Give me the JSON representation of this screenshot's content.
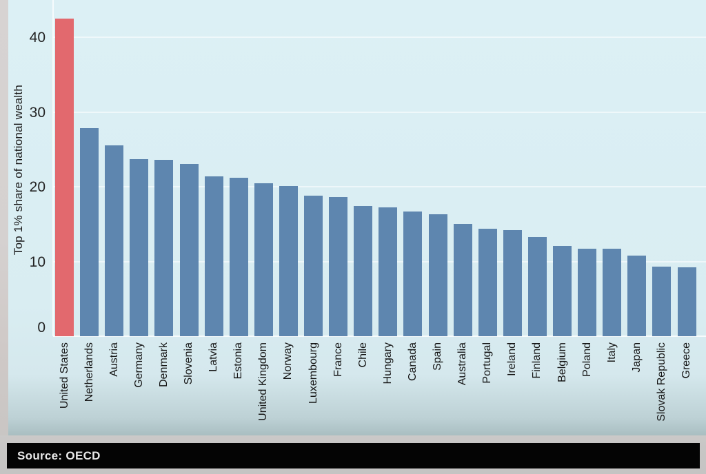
{
  "chart_data": {
    "type": "bar",
    "title": "",
    "ylabel": "Top 1% share of national wealth",
    "xlabel": "",
    "yticks": [
      40,
      30,
      20,
      10,
      0
    ],
    "ylim": [
      0,
      44
    ],
    "grid": true,
    "legend": "none",
    "categories": [
      "United States",
      "Netherlands",
      "Austria",
      "Germany",
      "Denmark",
      "Slovenia",
      "Latvia",
      "Estonia",
      "United Kingdom",
      "Norway",
      "Luxembourg",
      "France",
      "Chile",
      "Hungary",
      "Canada",
      "Spain",
      "Australia",
      "Portugal",
      "Ireland",
      "Finland",
      "Belgium",
      "Poland",
      "Italy",
      "Japan",
      "Slovak Republic",
      "Greece"
    ],
    "values": [
      42.5,
      27.8,
      25.5,
      23.7,
      23.6,
      23.0,
      21.4,
      21.2,
      20.5,
      20.1,
      18.8,
      18.6,
      17.4,
      17.2,
      16.7,
      16.3,
      15.0,
      14.4,
      14.2,
      13.3,
      12.1,
      11.7,
      11.7,
      10.8,
      9.3,
      9.2
    ],
    "highlight_category": "United States",
    "colors": {
      "bar": "#5e86af",
      "highlight": "#e2696e",
      "plot_background": "#d9edf2",
      "gridline": "#ffffff",
      "text": "#1b1b1b"
    }
  },
  "source_bar": {
    "label": "Source: OECD",
    "background": "#040404",
    "text_color": "#e9e9e9"
  }
}
